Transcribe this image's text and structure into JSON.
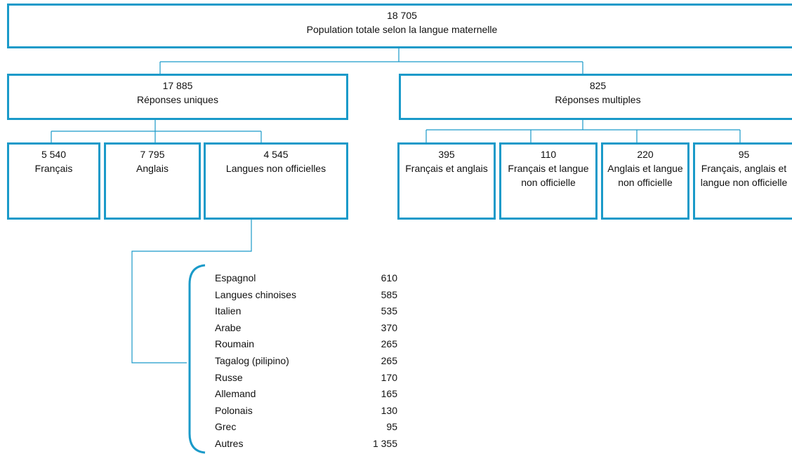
{
  "root": {
    "value": "18 705",
    "label": "Population totale selon la langue maternelle"
  },
  "groups": [
    {
      "value": "17 885",
      "label": "Réponses uniques",
      "children": [
        {
          "value": "5 540",
          "label": "Français"
        },
        {
          "value": "7 795",
          "label": "Anglais"
        },
        {
          "value": "4 545",
          "label": "Langues non officielles"
        }
      ]
    },
    {
      "value": "825",
      "label": "Réponses multiples",
      "children": [
        {
          "value": "395",
          "label": "Français et anglais"
        },
        {
          "value": "110",
          "label": "Français et langue non officielle"
        },
        {
          "value": "220",
          "label": "Anglais et langue non officielle"
        },
        {
          "value": "95",
          "label": "Français, anglais et langue non officielle"
        }
      ]
    }
  ],
  "languages": [
    {
      "name": "Espagnol",
      "value": "610"
    },
    {
      "name": "Langues chinoises",
      "value": "585"
    },
    {
      "name": "Italien",
      "value": "535"
    },
    {
      "name": "Arabe",
      "value": "370"
    },
    {
      "name": "Roumain",
      "value": "265"
    },
    {
      "name": "Tagalog (pilipino)",
      "value": "265"
    },
    {
      "name": "Russe",
      "value": "170"
    },
    {
      "name": "Allemand",
      "value": "165"
    },
    {
      "name": "Polonais",
      "value": "130"
    },
    {
      "name": "Grec",
      "value": "95"
    },
    {
      "name": "Autres",
      "value": "1 355"
    }
  ]
}
